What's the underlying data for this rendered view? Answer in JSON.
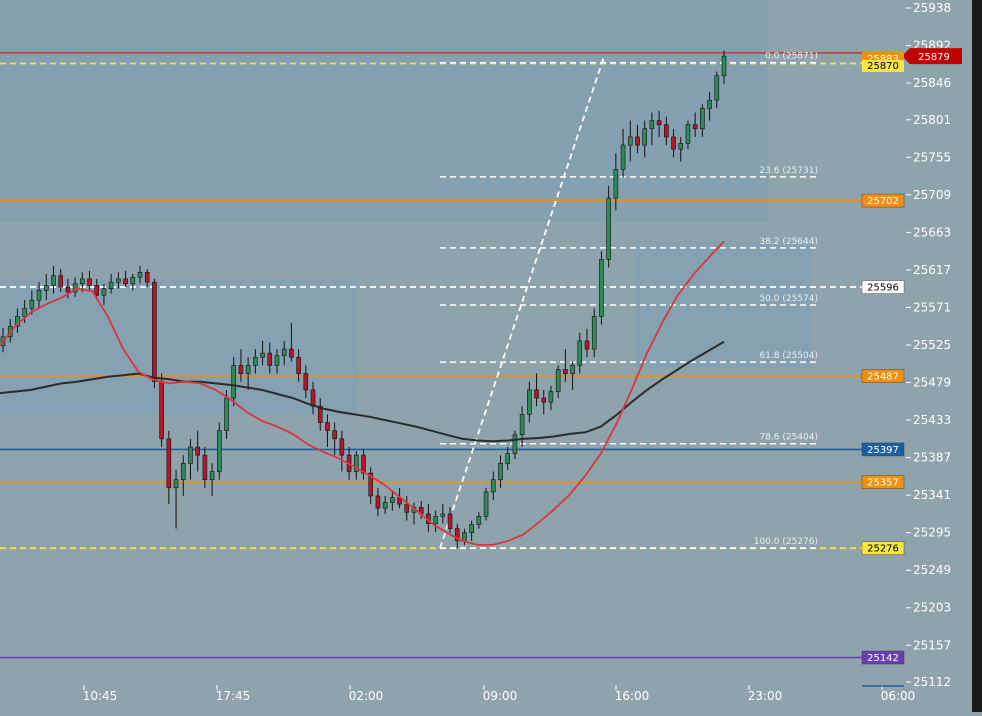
{
  "chart_data": {
    "type": "candlestick",
    "x_ticks": [
      "10:45",
      "17:45",
      "02:00",
      "09:00",
      "16:00",
      "23:00",
      "06:00"
    ],
    "y_ticks": [
      25938,
      25892,
      25846,
      25801,
      25755,
      25709,
      25663,
      25617,
      25571,
      25525,
      25479,
      25433,
      25387,
      25341,
      25295,
      25249,
      25203,
      25157,
      25112
    ],
    "y_range": [
      25112,
      25938
    ],
    "last_price": 25879,
    "price_tags": [
      {
        "value": 25879,
        "color": "#c00000",
        "text_color": "#ffffff",
        "style": "last"
      },
      {
        "value": 25702,
        "color": "#f0900c",
        "text_color": "#ffffff"
      },
      {
        "value": 25596,
        "color": "#ffffff",
        "text_color": "#000000"
      },
      {
        "value": 25487,
        "color": "#f0900c",
        "text_color": "#ffffff"
      },
      {
        "value": 25397,
        "color": "#1e5fa0",
        "text_color": "#ffffff"
      },
      {
        "value": 25357,
        "color": "#f0900c",
        "text_color": "#ffffff"
      },
      {
        "value": 25276,
        "color": "#f5e642",
        "text_color": "#000000"
      },
      {
        "value": 25142,
        "color": "#6a3fb5",
        "text_color": "#ffffff"
      }
    ],
    "hidden_tags": [
      "25883",
      "25870"
    ],
    "horizontal_lines": [
      {
        "value": 25702,
        "color": "#f0900c",
        "style": "solid"
      },
      {
        "value": 25487,
        "color": "#f0900c",
        "style": "solid"
      },
      {
        "value": 25397,
        "color": "#1e5fa0",
        "style": "solid"
      },
      {
        "value": 25357,
        "color": "#f0900c",
        "style": "solid"
      },
      {
        "value": 25142,
        "color": "#6a3fb5",
        "style": "solid"
      },
      {
        "value": 25596,
        "color": "#ffffff",
        "style": "dashed"
      },
      {
        "value": 25276,
        "color": "#f5e642",
        "style": "dashed"
      },
      {
        "value": 25870,
        "color": "#f5e642",
        "style": "dashed"
      },
      {
        "value": 25883,
        "color": "#c0392b",
        "style": "solid"
      }
    ],
    "fib_levels": [
      {
        "label": "0.0 (25871)",
        "value": 25871
      },
      {
        "label": "23.6 (25731)",
        "value": 25731
      },
      {
        "label": "38.2 (25644)",
        "value": 25644
      },
      {
        "label": "50.0 (25574)",
        "value": 25574
      },
      {
        "label": "61.8 (25504)",
        "value": 25504
      },
      {
        "label": "78.6 (25404)",
        "value": 25404
      },
      {
        "label": "100.0 (25276)",
        "value": 25276
      }
    ],
    "candles": [
      [
        25524,
        25546,
        25516,
        25535
      ],
      [
        25535,
        25557,
        25528,
        25548
      ],
      [
        25548,
        25570,
        25540,
        25560
      ],
      [
        25560,
        25580,
        25552,
        25570
      ],
      [
        25570,
        25592,
        25562,
        25580
      ],
      [
        25580,
        25602,
        25570,
        25592
      ],
      [
        25592,
        25612,
        25580,
        25598
      ],
      [
        25598,
        25622,
        25588,
        25610
      ],
      [
        25610,
        25618,
        25590,
        25596
      ],
      [
        25596,
        25606,
        25582,
        25590
      ],
      [
        25590,
        25608,
        25584,
        25600
      ],
      [
        25600,
        25614,
        25590,
        25606
      ],
      [
        25606,
        25616,
        25592,
        25598
      ],
      [
        25598,
        25606,
        25580,
        25586
      ],
      [
        25586,
        25600,
        25574,
        25594
      ],
      [
        25594,
        25612,
        25588,
        25602
      ],
      [
        25602,
        25614,
        25594,
        25606
      ],
      [
        25606,
        25616,
        25596,
        25600
      ],
      [
        25600,
        25612,
        25592,
        25608
      ],
      [
        25608,
        25622,
        25600,
        25614
      ],
      [
        25614,
        25618,
        25596,
        25602
      ],
      [
        25602,
        25606,
        25472,
        25480
      ],
      [
        25480,
        25490,
        25400,
        25410
      ],
      [
        25410,
        25420,
        25330,
        25350
      ],
      [
        25350,
        25372,
        25300,
        25360
      ],
      [
        25360,
        25390,
        25340,
        25380
      ],
      [
        25380,
        25410,
        25360,
        25400
      ],
      [
        25400,
        25420,
        25370,
        25390
      ],
      [
        25390,
        25400,
        25350,
        25360
      ],
      [
        25360,
        25380,
        25340,
        25370
      ],
      [
        25370,
        25430,
        25360,
        25420
      ],
      [
        25420,
        25470,
        25410,
        25460
      ],
      [
        25460,
        25510,
        25450,
        25500
      ],
      [
        25500,
        25520,
        25480,
        25490
      ],
      [
        25490,
        25510,
        25470,
        25500
      ],
      [
        25500,
        25520,
        25490,
        25510
      ],
      [
        25510,
        25530,
        25500,
        25515
      ],
      [
        25515,
        25528,
        25490,
        25500
      ],
      [
        25500,
        25520,
        25490,
        25512
      ],
      [
        25512,
        25530,
        25500,
        25520
      ],
      [
        25520,
        25552,
        25505,
        25510
      ],
      [
        25510,
        25520,
        25480,
        25490
      ],
      [
        25490,
        25500,
        25460,
        25470
      ],
      [
        25470,
        25480,
        25440,
        25450
      ],
      [
        25450,
        25460,
        25420,
        25430
      ],
      [
        25430,
        25440,
        25400,
        25420
      ],
      [
        25420,
        25430,
        25390,
        25410
      ],
      [
        25410,
        25420,
        25370,
        25390
      ],
      [
        25390,
        25400,
        25360,
        25370
      ],
      [
        25370,
        25395,
        25360,
        25390
      ],
      [
        25390,
        25398,
        25360,
        25368
      ],
      [
        25368,
        25375,
        25330,
        25340
      ],
      [
        25340,
        25350,
        25315,
        25325
      ],
      [
        25325,
        25340,
        25318,
        25332
      ],
      [
        25332,
        25345,
        25322,
        25338
      ],
      [
        25338,
        25350,
        25325,
        25330
      ],
      [
        25330,
        25340,
        25310,
        25320
      ],
      [
        25320,
        25332,
        25305,
        25326
      ],
      [
        25326,
        25334,
        25312,
        25318
      ],
      [
        25318,
        25330,
        25296,
        25306
      ],
      [
        25306,
        25322,
        25296,
        25315
      ],
      [
        25315,
        25330,
        25306,
        25318
      ],
      [
        25318,
        25326,
        25295,
        25300
      ],
      [
        25300,
        25306,
        25276,
        25285
      ],
      [
        25285,
        25300,
        25280,
        25295
      ],
      [
        25295,
        25310,
        25285,
        25305
      ],
      [
        25305,
        25320,
        25300,
        25315
      ],
      [
        25315,
        25350,
        25310,
        25345
      ],
      [
        25345,
        25370,
        25335,
        25360
      ],
      [
        25360,
        25390,
        25350,
        25380
      ],
      [
        25380,
        25400,
        25372,
        25392
      ],
      [
        25392,
        25420,
        25385,
        25415
      ],
      [
        25415,
        25450,
        25400,
        25440
      ],
      [
        25440,
        25480,
        25430,
        25470
      ],
      [
        25470,
        25490,
        25450,
        25460
      ],
      [
        25460,
        25470,
        25440,
        25455
      ],
      [
        25455,
        25475,
        25445,
        25468
      ],
      [
        25468,
        25500,
        25460,
        25495
      ],
      [
        25495,
        25520,
        25480,
        25490
      ],
      [
        25490,
        25505,
        25470,
        25500
      ],
      [
        25500,
        25540,
        25490,
        25530
      ],
      [
        25530,
        25545,
        25510,
        25520
      ],
      [
        25520,
        25570,
        25510,
        25560
      ],
      [
        25560,
        25640,
        25550,
        25630
      ],
      [
        25630,
        25720,
        25620,
        25705
      ],
      [
        25705,
        25760,
        25690,
        25740
      ],
      [
        25740,
        25790,
        25730,
        25770
      ],
      [
        25770,
        25800,
        25750,
        25780
      ],
      [
        25780,
        25795,
        25760,
        25770
      ],
      [
        25770,
        25800,
        25755,
        25790
      ],
      [
        25790,
        25810,
        25770,
        25800
      ],
      [
        25800,
        25812,
        25780,
        25795
      ],
      [
        25795,
        25805,
        25770,
        25780
      ],
      [
        25780,
        25790,
        25755,
        25765
      ],
      [
        25765,
        25780,
        25750,
        25772
      ],
      [
        25772,
        25800,
        25765,
        25795
      ],
      [
        25795,
        25810,
        25780,
        25790
      ],
      [
        25790,
        25820,
        25780,
        25815
      ],
      [
        25815,
        25835,
        25800,
        25825
      ],
      [
        25825,
        25860,
        25815,
        25855
      ],
      [
        25855,
        25886,
        25845,
        25879
      ]
    ],
    "ma_fast": [
      [
        0,
        25525
      ],
      [
        10,
        25548
      ],
      [
        20,
        25565
      ],
      [
        30,
        25575
      ],
      [
        40,
        25583
      ],
      [
        50,
        25594
      ],
      [
        60,
        25591
      ],
      [
        70,
        25560
      ],
      [
        80,
        25520
      ],
      [
        90,
        25492
      ],
      [
        100,
        25482
      ],
      [
        110,
        25478
      ],
      [
        120,
        25480
      ],
      [
        130,
        25478
      ],
      [
        140,
        25470
      ],
      [
        150,
        25458
      ],
      [
        160,
        25443
      ],
      [
        170,
        25432
      ],
      [
        180,
        25425
      ],
      [
        190,
        25416
      ],
      [
        200,
        25403
      ],
      [
        210,
        25394
      ],
      [
        220,
        25386
      ],
      [
        230,
        25376
      ],
      [
        240,
        25365
      ],
      [
        250,
        25353
      ],
      [
        260,
        25338
      ],
      [
        270,
        25323
      ],
      [
        280,
        25307
      ],
      [
        290,
        25295
      ],
      [
        300,
        25285
      ],
      [
        310,
        25280
      ],
      [
        320,
        25280
      ],
      [
        330,
        25285
      ],
      [
        340,
        25293
      ],
      [
        350,
        25308
      ],
      [
        360,
        25324
      ],
      [
        370,
        25342
      ],
      [
        380,
        25365
      ],
      [
        390,
        25392
      ],
      [
        400,
        25428
      ],
      [
        410,
        25470
      ],
      [
        420,
        25515
      ],
      [
        430,
        25553
      ],
      [
        440,
        25586
      ],
      [
        450,
        25611
      ],
      [
        460,
        25632
      ],
      [
        470,
        25652
      ]
    ],
    "ma_slow": [
      [
        0,
        25466
      ],
      [
        10,
        25468
      ],
      [
        20,
        25470
      ],
      [
        30,
        25474
      ],
      [
        40,
        25478
      ],
      [
        50,
        25480
      ],
      [
        60,
        25483
      ],
      [
        70,
        25486
      ],
      [
        80,
        25488
      ],
      [
        90,
        25490
      ],
      [
        100,
        25485
      ],
      [
        110,
        25483
      ],
      [
        120,
        25480
      ],
      [
        130,
        25480
      ],
      [
        140,
        25478
      ],
      [
        150,
        25476
      ],
      [
        160,
        25473
      ],
      [
        170,
        25470
      ],
      [
        180,
        25465
      ],
      [
        190,
        25460
      ],
      [
        200,
        25453
      ],
      [
        210,
        25447
      ],
      [
        220,
        25443
      ],
      [
        230,
        25440
      ],
      [
        240,
        25437
      ],
      [
        250,
        25433
      ],
      [
        260,
        25429
      ],
      [
        270,
        25425
      ],
      [
        280,
        25420
      ],
      [
        290,
        25415
      ],
      [
        300,
        25410
      ],
      [
        310,
        25408
      ],
      [
        320,
        25407
      ],
      [
        330,
        25408
      ],
      [
        340,
        25410
      ],
      [
        350,
        25411
      ],
      [
        360,
        25413
      ],
      [
        370,
        25416
      ],
      [
        380,
        25418
      ],
      [
        390,
        25425
      ],
      [
        400,
        25439
      ],
      [
        410,
        25455
      ],
      [
        420,
        25470
      ],
      [
        430,
        25483
      ],
      [
        440,
        25495
      ],
      [
        450,
        25507
      ],
      [
        460,
        25518
      ],
      [
        470,
        25529
      ]
    ]
  }
}
